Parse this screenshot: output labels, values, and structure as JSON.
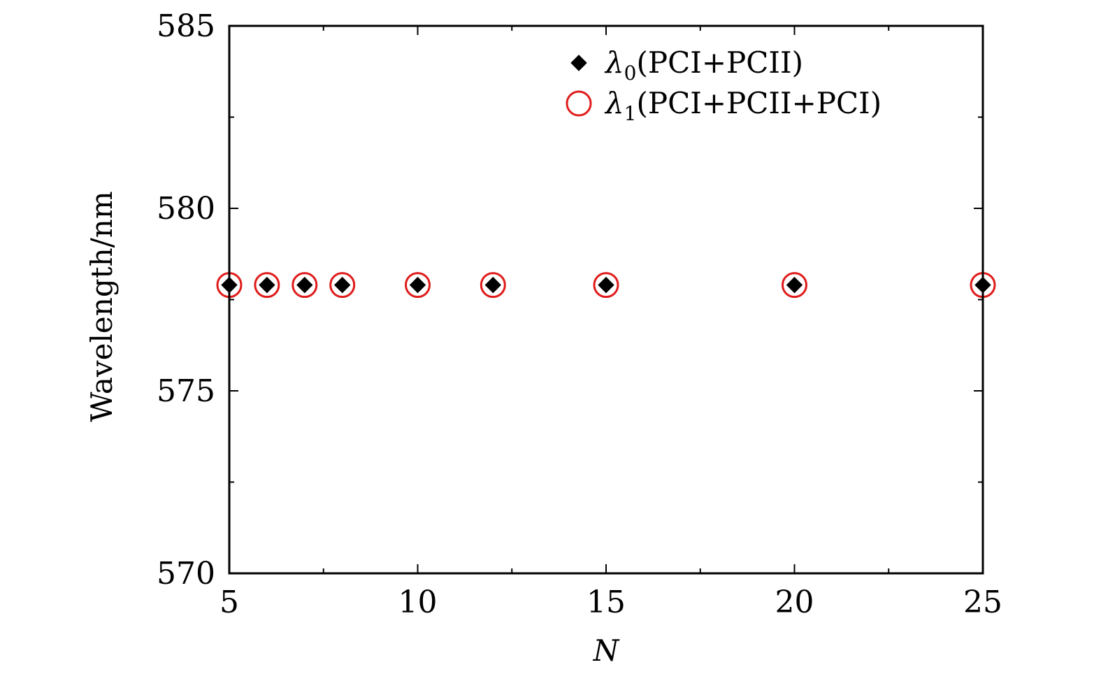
{
  "chart_data": {
    "type": "scatter",
    "xlabel": "N",
    "ylabel": "Wavelength/nm",
    "xlim": [
      5,
      25
    ],
    "ylim": [
      570,
      585
    ],
    "x_major_ticks": [
      5,
      10,
      15,
      20,
      25
    ],
    "x_minor_ticks": [
      7.5,
      12.5,
      17.5,
      22.5
    ],
    "y_major_ticks": [
      570,
      575,
      580,
      585
    ],
    "y_minor_ticks": [
      572.5,
      577.5,
      582.5
    ],
    "grid": false,
    "legend_position": "top-right",
    "series": [
      {
        "legend_symbol": "λ",
        "legend_subscript": "0",
        "legend_suffix": "(PCI+PCII)",
        "marker": "filled-diamond",
        "color": "#000000",
        "x": [
          5,
          6,
          7,
          8,
          10,
          12,
          15,
          20,
          25
        ],
        "y": [
          577.9,
          577.9,
          577.9,
          577.9,
          577.9,
          577.9,
          577.9,
          577.9,
          577.9
        ]
      },
      {
        "legend_symbol": "λ",
        "legend_subscript": "1",
        "legend_suffix": "(PCI+PCII+PCI)",
        "marker": "open-circle",
        "color": "#e01b1b",
        "x": [
          5,
          6,
          7,
          8,
          10,
          12,
          15,
          20,
          25
        ],
        "y": [
          577.9,
          577.9,
          577.9,
          577.9,
          577.9,
          577.9,
          577.9,
          577.9,
          577.9
        ]
      }
    ]
  }
}
